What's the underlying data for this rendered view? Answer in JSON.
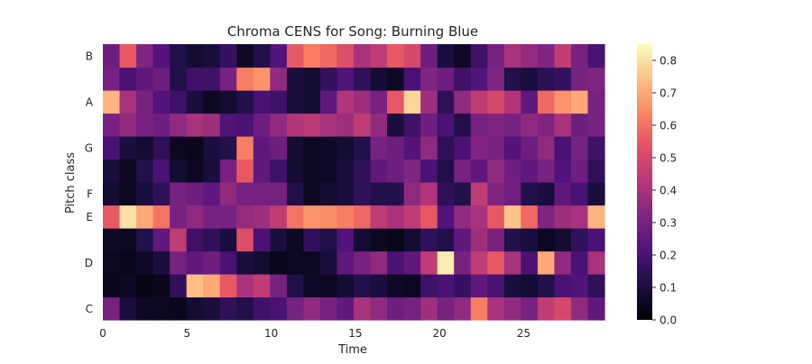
{
  "chart_data": {
    "type": "heatmap",
    "title": "Chroma CENS for Song: Burning Blue",
    "xlabel": "Time",
    "ylabel": "Pitch class",
    "xlim": [
      0,
      29.8
    ],
    "x_ticks": [
      0,
      5,
      10,
      15,
      20,
      25
    ],
    "y_ticks": [
      "C",
      "D",
      "E",
      "F",
      "G",
      "A",
      "B"
    ],
    "rows": [
      "C",
      "C#",
      "D",
      "D#",
      "E",
      "F",
      "F#",
      "G",
      "G#",
      "A",
      "A#",
      "B"
    ],
    "columns_per_row": 30,
    "colormap": "magma",
    "colorbar": {
      "vmin": 0,
      "vmax": 0.85,
      "ticks": [
        0.0,
        0.1,
        0.2,
        0.3,
        0.4,
        0.5,
        0.6,
        0.7,
        0.8
      ]
    },
    "values": {
      "B": [
        0.28,
        0.55,
        0.32,
        0.22,
        0.12,
        0.08,
        0.1,
        0.16,
        0.06,
        0.12,
        0.22,
        0.55,
        0.62,
        0.58,
        0.52,
        0.4,
        0.45,
        0.55,
        0.5,
        0.28,
        0.1,
        0.06,
        0.18,
        0.3,
        0.4,
        0.36,
        0.32,
        0.45,
        0.3,
        0.2
      ],
      "A#": [
        0.3,
        0.2,
        0.25,
        0.28,
        0.12,
        0.18,
        0.18,
        0.3,
        0.62,
        0.66,
        0.35,
        0.1,
        0.08,
        0.16,
        0.22,
        0.15,
        0.08,
        0.06,
        0.2,
        0.32,
        0.28,
        0.18,
        0.22,
        0.32,
        0.12,
        0.1,
        0.14,
        0.16,
        0.3,
        0.32
      ],
      "A": [
        0.72,
        0.4,
        0.3,
        0.22,
        0.18,
        0.1,
        0.05,
        0.08,
        0.12,
        0.2,
        0.18,
        0.1,
        0.08,
        0.25,
        0.42,
        0.38,
        0.3,
        0.55,
        0.78,
        0.38,
        0.15,
        0.35,
        0.45,
        0.5,
        0.42,
        0.25,
        0.58,
        0.66,
        0.7,
        0.3
      ],
      "G#": [
        0.3,
        0.35,
        0.3,
        0.28,
        0.35,
        0.4,
        0.38,
        0.22,
        0.2,
        0.28,
        0.35,
        0.42,
        0.44,
        0.4,
        0.38,
        0.45,
        0.35,
        0.1,
        0.18,
        0.28,
        0.2,
        0.12,
        0.3,
        0.32,
        0.3,
        0.35,
        0.32,
        0.4,
        0.28,
        0.3
      ],
      "G": [
        0.2,
        0.1,
        0.08,
        0.15,
        0.05,
        0.04,
        0.1,
        0.12,
        0.62,
        0.25,
        0.28,
        0.08,
        0.05,
        0.06,
        0.08,
        0.12,
        0.3,
        0.28,
        0.22,
        0.35,
        0.15,
        0.2,
        0.32,
        0.3,
        0.22,
        0.28,
        0.35,
        0.2,
        0.3,
        0.18
      ],
      "F#": [
        0.1,
        0.05,
        0.12,
        0.2,
        0.08,
        0.05,
        0.1,
        0.3,
        0.55,
        0.25,
        0.18,
        0.08,
        0.05,
        0.06,
        0.1,
        0.15,
        0.25,
        0.28,
        0.32,
        0.2,
        0.12,
        0.3,
        0.25,
        0.35,
        0.28,
        0.25,
        0.3,
        0.22,
        0.28,
        0.15
      ],
      "F": [
        0.08,
        0.05,
        0.1,
        0.15,
        0.3,
        0.28,
        0.25,
        0.35,
        0.3,
        0.3,
        0.3,
        0.12,
        0.05,
        0.08,
        0.1,
        0.15,
        0.12,
        0.12,
        0.35,
        0.42,
        0.15,
        0.12,
        0.45,
        0.32,
        0.28,
        0.12,
        0.1,
        0.25,
        0.2,
        0.1
      ],
      "E": [
        0.55,
        0.8,
        0.7,
        0.6,
        0.3,
        0.35,
        0.3,
        0.3,
        0.36,
        0.38,
        0.45,
        0.6,
        0.66,
        0.65,
        0.62,
        0.58,
        0.45,
        0.4,
        0.45,
        0.55,
        0.22,
        0.35,
        0.4,
        0.55,
        0.75,
        0.58,
        0.32,
        0.38,
        0.4,
        0.72
      ],
      "D#": [
        0.06,
        0.05,
        0.12,
        0.25,
        0.45,
        0.18,
        0.15,
        0.1,
        0.52,
        0.2,
        0.1,
        0.05,
        0.15,
        0.12,
        0.22,
        0.08,
        0.05,
        0.04,
        0.08,
        0.15,
        0.12,
        0.25,
        0.38,
        0.3,
        0.12,
        0.1,
        0.05,
        0.08,
        0.15,
        0.2
      ],
      "D": [
        0.05,
        0.04,
        0.06,
        0.1,
        0.3,
        0.25,
        0.28,
        0.2,
        0.1,
        0.08,
        0.04,
        0.05,
        0.05,
        0.1,
        0.25,
        0.3,
        0.35,
        0.2,
        0.25,
        0.45,
        0.82,
        0.3,
        0.45,
        0.55,
        0.4,
        0.2,
        0.7,
        0.35,
        0.2,
        0.4
      ],
      "C#": [
        0.04,
        0.05,
        0.03,
        0.04,
        0.15,
        0.74,
        0.7,
        0.55,
        0.4,
        0.45,
        0.3,
        0.12,
        0.06,
        0.05,
        0.08,
        0.12,
        0.1,
        0.06,
        0.05,
        0.18,
        0.2,
        0.16,
        0.25,
        0.2,
        0.1,
        0.08,
        0.12,
        0.2,
        0.22,
        0.15
      ],
      "C": [
        0.3,
        0.1,
        0.05,
        0.05,
        0.04,
        0.08,
        0.1,
        0.15,
        0.12,
        0.18,
        0.2,
        0.3,
        0.35,
        0.3,
        0.25,
        0.4,
        0.35,
        0.28,
        0.3,
        0.38,
        0.3,
        0.35,
        0.62,
        0.4,
        0.35,
        0.3,
        0.45,
        0.5,
        0.35,
        0.25
      ]
    }
  }
}
